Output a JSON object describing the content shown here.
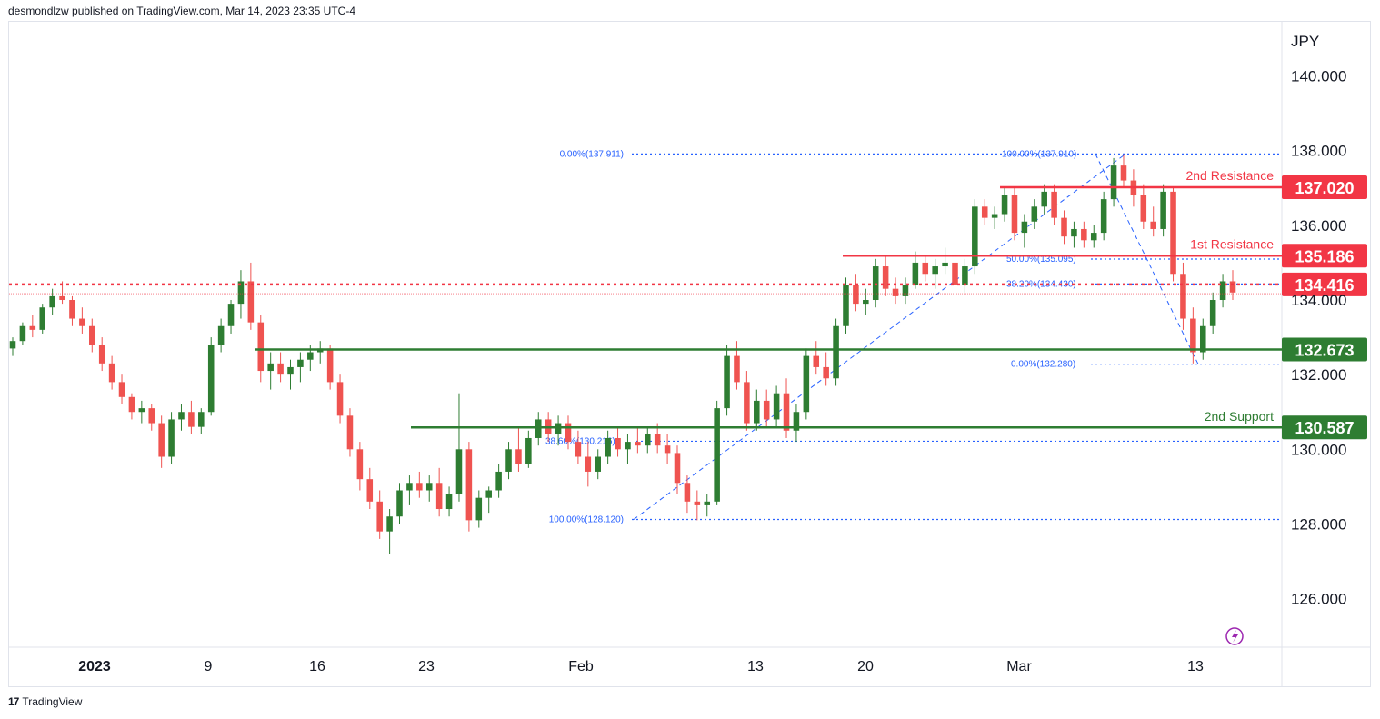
{
  "header": {
    "text": "desmondlzw published on TradingView.com, Mar 14, 2023 23:35 UTC-4"
  },
  "footer": {
    "logo": "17",
    "text": "TradingView"
  },
  "colors": {
    "up": "#2e7d32",
    "down": "#ef5350",
    "resistance": "#f23645",
    "support": "#2e7d32",
    "fib": "#2962ff",
    "grid": "#e0e3eb"
  },
  "chart_data": {
    "type": "candlestick",
    "currency": "JPY",
    "y_ticks": [
      "140.000",
      "138.000",
      "136.000",
      "134.000",
      "132.000",
      "130.000",
      "128.000",
      "126.000"
    ],
    "y_tick_values": [
      140,
      138,
      136,
      134,
      132,
      130,
      128,
      126
    ],
    "ylim": [
      124.7,
      141.45
    ],
    "x_ticks": [
      {
        "label": "2023",
        "bold": true
      },
      {
        "label": "9"
      },
      {
        "label": "16"
      },
      {
        "label": "23"
      },
      {
        "label": "Feb",
        "bold": false
      },
      {
        "label": "13"
      },
      {
        "label": "20"
      },
      {
        "label": "Mar"
      },
      {
        "label": "13"
      }
    ],
    "levels": [
      {
        "name": "2nd Resistance",
        "value": 137.02,
        "label": "137.020",
        "type": "resistance"
      },
      {
        "name": "1st Resistance",
        "value": 135.186,
        "label": "135.186",
        "type": "resistance"
      },
      {
        "name": "",
        "value": 134.416,
        "label": "134.416",
        "type": "pivot"
      },
      {
        "name": "",
        "value": 132.673,
        "label": "132.673",
        "type": "support"
      },
      {
        "name": "2nd Support",
        "value": 130.587,
        "label": "130.587",
        "type": "support"
      }
    ],
    "fib_labels": [
      {
        "text": "0.00%(137.911)",
        "value": 137.911
      },
      {
        "text": "100.00%(137.910)",
        "value": 137.91
      },
      {
        "text": "50.00%(135.095)",
        "value": 135.095
      },
      {
        "text": "38.20%(134.430)",
        "value": 134.43
      },
      {
        "text": "0.00%(132.280)",
        "value": 132.28
      },
      {
        "text": "38.60%(130.216)",
        "value": 130.216
      },
      {
        "text": "100.00%(128.120)",
        "value": 128.12
      }
    ],
    "candles": [
      [
        132.7,
        133.0,
        132.5,
        132.9
      ],
      [
        132.9,
        133.4,
        132.8,
        133.3
      ],
      [
        133.3,
        133.6,
        133.0,
        133.2
      ],
      [
        133.2,
        133.9,
        133.1,
        133.8
      ],
      [
        133.8,
        134.3,
        133.6,
        134.1
      ],
      [
        134.1,
        134.5,
        133.9,
        134.0
      ],
      [
        134.0,
        134.1,
        133.3,
        133.5
      ],
      [
        133.5,
        133.8,
        133.1,
        133.3
      ],
      [
        133.3,
        133.5,
        132.6,
        132.8
      ],
      [
        132.8,
        133.0,
        132.1,
        132.3
      ],
      [
        132.3,
        132.5,
        131.6,
        131.8
      ],
      [
        131.8,
        132.0,
        131.2,
        131.4
      ],
      [
        131.4,
        131.5,
        130.8,
        131.0
      ],
      [
        131.0,
        131.3,
        130.7,
        131.1
      ],
      [
        131.1,
        131.2,
        130.5,
        130.7
      ],
      [
        130.7,
        130.9,
        129.5,
        129.8
      ],
      [
        129.8,
        131.0,
        129.6,
        130.8
      ],
      [
        130.8,
        131.2,
        130.5,
        131.0
      ],
      [
        131.0,
        131.3,
        130.4,
        130.6
      ],
      [
        130.6,
        131.1,
        130.4,
        131.0
      ],
      [
        131.0,
        133.0,
        130.9,
        132.8
      ],
      [
        132.8,
        133.5,
        132.6,
        133.3
      ],
      [
        133.3,
        134.0,
        133.1,
        133.9
      ],
      [
        133.9,
        134.8,
        133.5,
        134.5
      ],
      [
        134.5,
        135.0,
        133.2,
        133.4
      ],
      [
        133.4,
        133.6,
        131.8,
        132.1
      ],
      [
        132.1,
        132.6,
        131.6,
        132.3
      ],
      [
        132.3,
        132.6,
        131.8,
        132.0
      ],
      [
        132.0,
        132.4,
        131.6,
        132.2
      ],
      [
        132.2,
        132.6,
        131.8,
        132.4
      ],
      [
        132.4,
        132.8,
        132.1,
        132.6
      ],
      [
        132.6,
        132.9,
        132.3,
        132.7
      ],
      [
        132.7,
        132.8,
        131.6,
        131.8
      ],
      [
        131.8,
        132.0,
        130.7,
        130.9
      ],
      [
        130.9,
        131.1,
        129.8,
        130.0
      ],
      [
        130.0,
        130.2,
        128.9,
        129.2
      ],
      [
        129.2,
        129.5,
        128.4,
        128.6
      ],
      [
        128.6,
        128.9,
        127.6,
        127.8
      ],
      [
        127.8,
        128.4,
        127.2,
        128.2
      ],
      [
        128.2,
        129.1,
        128.0,
        128.9
      ],
      [
        128.9,
        129.3,
        128.5,
        129.1
      ],
      [
        129.1,
        129.4,
        128.7,
        128.9
      ],
      [
        128.9,
        129.3,
        128.6,
        129.1
      ],
      [
        129.1,
        129.5,
        128.2,
        128.4
      ],
      [
        128.4,
        129.0,
        128.2,
        128.8
      ],
      [
        128.8,
        131.5,
        128.6,
        130.0
      ],
      [
        130.0,
        130.2,
        127.8,
        128.1
      ],
      [
        128.1,
        128.9,
        127.9,
        128.7
      ],
      [
        128.7,
        129.0,
        128.3,
        128.9
      ],
      [
        128.9,
        129.6,
        128.7,
        129.4
      ],
      [
        129.4,
        130.2,
        129.2,
        130.0
      ],
      [
        130.0,
        130.6,
        129.4,
        129.6
      ],
      [
        129.6,
        130.5,
        129.5,
        130.3
      ],
      [
        130.3,
        131.0,
        130.1,
        130.8
      ],
      [
        130.8,
        131.0,
        130.2,
        130.4
      ],
      [
        130.4,
        130.9,
        130.1,
        130.7
      ],
      [
        130.7,
        130.9,
        130.0,
        130.2
      ],
      [
        130.2,
        130.5,
        129.6,
        129.8
      ],
      [
        129.8,
        130.2,
        129.0,
        129.4
      ],
      [
        129.4,
        130.0,
        129.2,
        129.8
      ],
      [
        129.8,
        130.5,
        129.6,
        130.3
      ],
      [
        130.3,
        130.6,
        129.8,
        130.0
      ],
      [
        130.0,
        130.4,
        129.6,
        130.2
      ],
      [
        130.2,
        130.6,
        129.9,
        130.1
      ],
      [
        130.1,
        130.6,
        129.9,
        130.4
      ],
      [
        130.4,
        130.7,
        129.9,
        130.1
      ],
      [
        130.1,
        130.4,
        129.6,
        129.9
      ],
      [
        129.9,
        130.1,
        128.8,
        129.1
      ],
      [
        129.1,
        129.3,
        128.3,
        128.6
      ],
      [
        128.6,
        128.9,
        128.1,
        128.5
      ],
      [
        128.5,
        128.8,
        128.2,
        128.6
      ],
      [
        128.6,
        131.3,
        128.5,
        131.1
      ],
      [
        131.1,
        132.8,
        130.9,
        132.5
      ],
      [
        132.5,
        132.9,
        131.6,
        131.8
      ],
      [
        131.8,
        132.1,
        130.5,
        130.7
      ],
      [
        130.7,
        131.6,
        130.5,
        131.3
      ],
      [
        131.3,
        131.6,
        130.6,
        130.8
      ],
      [
        130.8,
        131.7,
        130.6,
        131.5
      ],
      [
        131.5,
        131.9,
        130.3,
        130.5
      ],
      [
        130.5,
        131.2,
        130.2,
        131.0
      ],
      [
        131.0,
        132.7,
        130.8,
        132.5
      ],
      [
        132.5,
        132.9,
        132.0,
        132.2
      ],
      [
        132.2,
        132.6,
        131.7,
        131.9
      ],
      [
        131.9,
        133.5,
        131.7,
        133.3
      ],
      [
        133.3,
        134.6,
        133.1,
        134.4
      ],
      [
        134.4,
        134.7,
        133.7,
        133.9
      ],
      [
        133.9,
        134.3,
        133.6,
        134.0
      ],
      [
        134.0,
        135.1,
        133.8,
        134.9
      ],
      [
        134.9,
        135.2,
        134.1,
        134.3
      ],
      [
        134.3,
        134.6,
        133.9,
        134.1
      ],
      [
        134.1,
        134.6,
        133.9,
        134.4
      ],
      [
        134.4,
        135.3,
        134.3,
        135.0
      ],
      [
        135.0,
        135.2,
        134.5,
        134.7
      ],
      [
        134.7,
        135.1,
        134.3,
        134.9
      ],
      [
        134.9,
        135.4,
        134.7,
        135.0
      ],
      [
        135.0,
        135.2,
        134.2,
        134.4
      ],
      [
        134.4,
        135.1,
        134.2,
        134.9
      ],
      [
        134.9,
        136.7,
        134.7,
        136.5
      ],
      [
        136.5,
        136.7,
        136.0,
        136.2
      ],
      [
        136.2,
        136.5,
        135.9,
        136.3
      ],
      [
        136.3,
        137.0,
        136.1,
        136.8
      ],
      [
        136.8,
        137.0,
        135.6,
        135.8
      ],
      [
        135.8,
        136.3,
        135.4,
        136.1
      ],
      [
        136.1,
        136.7,
        135.9,
        136.5
      ],
      [
        136.5,
        137.1,
        136.3,
        136.9
      ],
      [
        136.9,
        137.1,
        136.0,
        136.2
      ],
      [
        136.2,
        136.4,
        135.5,
        135.7
      ],
      [
        135.7,
        136.1,
        135.4,
        135.9
      ],
      [
        135.9,
        136.1,
        135.4,
        135.6
      ],
      [
        135.6,
        136.0,
        135.4,
        135.8
      ],
      [
        135.8,
        136.9,
        135.6,
        136.7
      ],
      [
        136.7,
        137.8,
        136.5,
        137.6
      ],
      [
        137.6,
        137.9,
        137.0,
        137.2
      ],
      [
        137.2,
        137.5,
        136.5,
        136.8
      ],
      [
        136.8,
        137.1,
        135.9,
        136.1
      ],
      [
        136.1,
        136.5,
        135.7,
        135.9
      ],
      [
        135.9,
        137.1,
        135.7,
        136.9
      ],
      [
        136.9,
        137.0,
        134.5,
        134.7
      ],
      [
        134.7,
        135.0,
        133.2,
        133.5
      ],
      [
        133.5,
        133.8,
        132.3,
        132.6
      ],
      [
        132.6,
        133.5,
        132.4,
        133.3
      ],
      [
        133.3,
        134.2,
        133.1,
        134.0
      ],
      [
        134.0,
        134.7,
        133.8,
        134.5
      ],
      [
        134.5,
        134.8,
        134.0,
        134.2
      ]
    ]
  }
}
